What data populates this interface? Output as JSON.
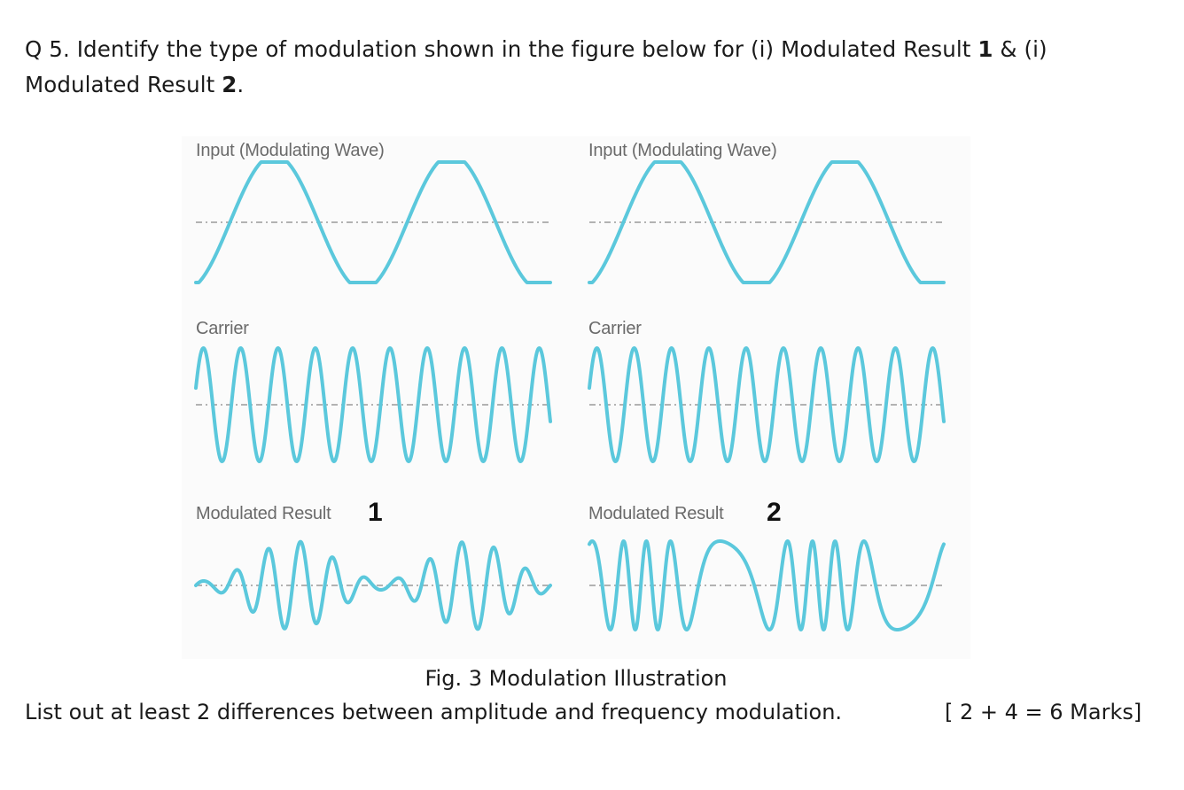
{
  "question": {
    "prefix": "Q 5. Identify the type of modulation shown in the figure below for (i) Modulated Result ",
    "num1": "1",
    "mid": " & (i) Modulated Result ",
    "num2": "2",
    "suffix": "."
  },
  "figure": {
    "columns": [
      {
        "input_label": "Input (Modulating Wave)",
        "carrier_label": "Carrier",
        "result_label": "Modulated Result",
        "result_number": "1"
      },
      {
        "input_label": "Input (Modulating Wave)",
        "carrier_label": "Carrier",
        "result_label": "Modulated Result",
        "result_number": "2"
      }
    ],
    "wave_color": "#5bc8dc",
    "axis_color": "#9a9a9a"
  },
  "caption": "Fig. 3 Modulation Illustration",
  "task": "List out at least 2 differences between amplitude and frequency modulation.",
  "marks": "[ 2 + 4 = 6 Marks]"
}
